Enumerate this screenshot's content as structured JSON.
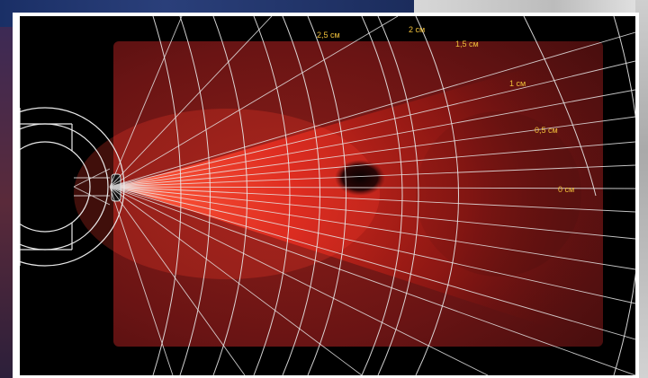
{
  "figure": {
    "depth_labels": [
      "2,5 см",
      "2 см",
      "1,5 см",
      "1 см",
      "0,5 см",
      "0 см"
    ]
  },
  "colors": {
    "label": "#f0c03a",
    "grid_lines": "#e8e8e8",
    "glow": "#ff3b2a",
    "tissue": "#7a1a1a",
    "background": "#000000"
  }
}
